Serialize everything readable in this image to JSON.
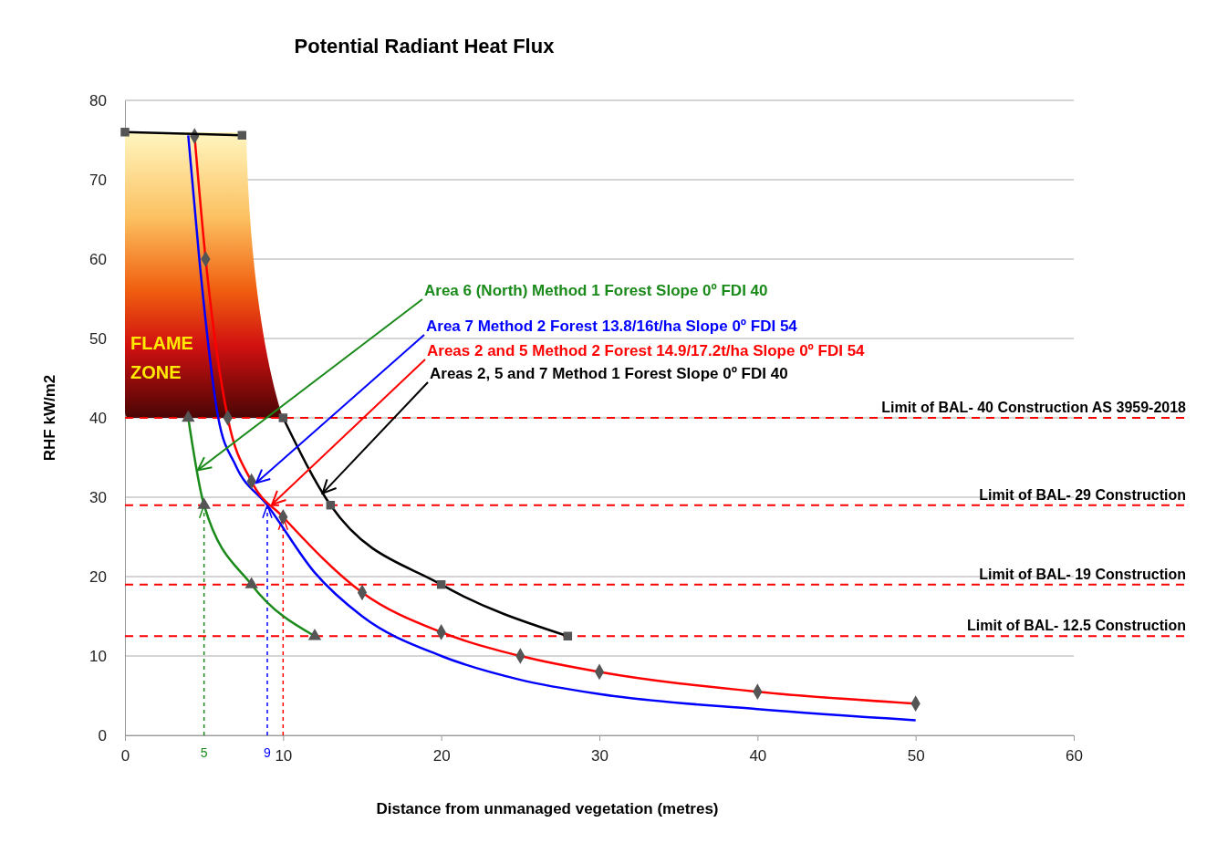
{
  "chart_data": {
    "type": "line",
    "title": "Potential Radiant Heat Flux",
    "xlabel": "Distance from unmanaged vegetation (metres)",
    "ylabel": "RHF kW/m2",
    "xlim": [
      0,
      60
    ],
    "xticks": [
      0,
      10,
      20,
      30,
      40,
      50,
      60
    ],
    "ylim": [
      0,
      80
    ],
    "yticks": [
      0,
      10,
      20,
      30,
      40,
      50,
      60,
      70,
      80
    ],
    "grid": "y",
    "line_style": "solid",
    "series": [
      {
        "color": "#1a8a1a",
        "marker": "triangle",
        "x": [
          4,
          5,
          8,
          12
        ],
        "values": [
          40,
          29,
          19,
          12.5
        ]
      },
      {
        "color": "#0000ff",
        "marker": "none",
        "x": [
          4,
          4.7,
          5.9,
          7,
          9,
          12,
          15,
          20,
          25,
          30,
          40,
          50
        ],
        "values": [
          75.6,
          60,
          40,
          34,
          29,
          20.5,
          15,
          10,
          7,
          5.2,
          3.3,
          1.9
        ]
      },
      {
        "color": "#ff0000",
        "marker": "diamond",
        "x": [
          4.4,
          5.1,
          6.5,
          8,
          10,
          15,
          20,
          25,
          30,
          40,
          50
        ],
        "values": [
          75.5,
          60,
          40,
          32,
          27.5,
          18,
          13,
          10,
          8,
          5.5,
          4
        ]
      },
      {
        "color": "#000000",
        "marker": "square",
        "x": [
          0,
          7.4,
          8,
          10,
          13,
          20,
          28
        ],
        "values": [
          76,
          75.6,
          null,
          40,
          29,
          19,
          12.5
        ]
      }
    ],
    "ref_lines": [
      {
        "axis": "y",
        "value": 40,
        "label": "Limit of BAL- 40 Construction AS 3959-2018",
        "color": "#ff0000",
        "line_style": "dashed"
      },
      {
        "axis": "y",
        "value": 29,
        "label": "Limit of BAL- 29  Construction",
        "color": "#ff0000",
        "line_style": "dashed"
      },
      {
        "axis": "y",
        "value": 19,
        "label": "Limit of BAL- 19 Construction",
        "color": "#ff0000",
        "line_style": "dashed"
      },
      {
        "axis": "y",
        "value": 12.5,
        "label": "Limit of BAL- 12.5 Construction",
        "color": "#ff0000",
        "line_style": "dashed"
      },
      {
        "axis": "x",
        "value": 5,
        "label": "5",
        "color": "#1a8a1a",
        "line_style": "dashed"
      },
      {
        "axis": "x",
        "value": 9,
        "label": "9",
        "color": "#0000ff",
        "line_style": "dashed"
      },
      {
        "axis": "x",
        "value": 10,
        "label": null,
        "color": "#ff0000",
        "line_style": "dashed"
      }
    ],
    "annotations": [
      {
        "text": "Area 6 (North) Method 1  Forest  Slope 0º  FDI 40",
        "x": 4.6,
        "y": 33.4
      },
      {
        "text": "Area 7 Method 2 Forest  13.8/16t/ha Slope 0º  FDI 54",
        "x": 8.3,
        "y": 31.8
      },
      {
        "text": "Areas 2 and 5 Method 2 Forest  14.9/17.2t/ha Slope 0º  FDI 54",
        "x": 9.3,
        "y": 29.1
      },
      {
        "text": "Areas 2, 5 and 7 Method 1  Forest  Slope 0º  FDI 40",
        "x": 12.5,
        "y": 30.5
      },
      "FLAME ZONE"
    ]
  }
}
